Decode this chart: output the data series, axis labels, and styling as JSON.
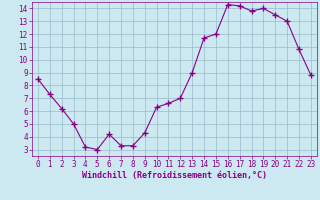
{
  "x": [
    0,
    1,
    2,
    3,
    4,
    5,
    6,
    7,
    8,
    9,
    10,
    11,
    12,
    13,
    14,
    15,
    16,
    17,
    18,
    19,
    20,
    21,
    22,
    23
  ],
  "y": [
    8.5,
    7.3,
    6.2,
    5.0,
    3.2,
    3.0,
    4.2,
    3.3,
    3.3,
    4.3,
    6.3,
    6.6,
    7.0,
    9.0,
    11.7,
    12.0,
    14.3,
    14.2,
    13.8,
    14.0,
    13.5,
    13.0,
    10.8,
    8.8
  ],
  "line_color": "#880088",
  "marker": "+",
  "marker_size": 4,
  "bg_color": "#cce8f0",
  "grid_color": "#99bbcc",
  "xlabel": "Windchill (Refroidissement éolien,°C)",
  "xlim": [
    -0.5,
    23.5
  ],
  "ylim": [
    2.5,
    14.5
  ],
  "yticks": [
    3,
    4,
    5,
    6,
    7,
    8,
    9,
    10,
    11,
    12,
    13,
    14
  ],
  "xticks": [
    0,
    1,
    2,
    3,
    4,
    5,
    6,
    7,
    8,
    9,
    10,
    11,
    12,
    13,
    14,
    15,
    16,
    17,
    18,
    19,
    20,
    21,
    22,
    23
  ],
  "axis_color": "#880088",
  "tick_color": "#880088",
  "label_color": "#880088",
  "tick_fontsize": 5.5,
  "xlabel_fontsize": 6.0
}
